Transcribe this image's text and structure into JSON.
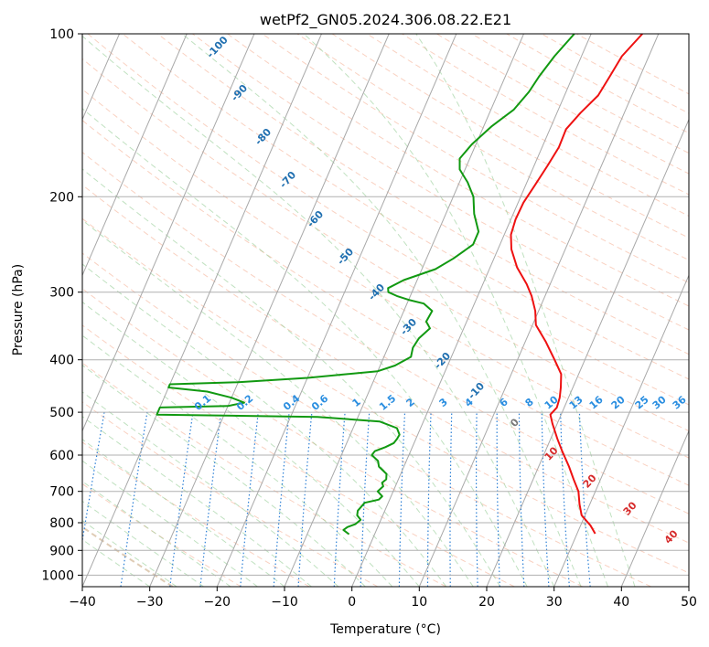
{
  "chart_data": {
    "type": "line",
    "title": "wetPf2_GN05.2024.306.08.22.E21",
    "xlabel": "Temperature (°C)",
    "ylabel": "Pressure (hPa)",
    "xlim": [
      -40,
      50
    ],
    "ylim": [
      1050,
      100
    ],
    "y_scale": "log",
    "x_ticks": [
      -40,
      -30,
      -20,
      -10,
      0,
      10,
      20,
      30,
      40,
      50
    ],
    "y_ticks": [
      100,
      200,
      300,
      400,
      500,
      600,
      700,
      800,
      900,
      1000
    ],
    "grid": true,
    "series": [
      {
        "name": "",
        "color": "#ee1111",
        "points": [
          [
            32.7,
            838
          ],
          [
            31.5,
            810
          ],
          [
            29.5,
            775
          ],
          [
            28.5,
            740
          ],
          [
            27.5,
            700
          ],
          [
            26.0,
            665
          ],
          [
            24.5,
            630
          ],
          [
            22.5,
            590
          ],
          [
            21.0,
            560
          ],
          [
            19.3,
            525
          ],
          [
            18.4,
            505
          ],
          [
            18.9,
            490
          ],
          [
            18.7,
            470
          ],
          [
            18.2,
            450
          ],
          [
            17.4,
            425
          ],
          [
            15.5,
            400
          ],
          [
            13.0,
            370
          ],
          [
            10.5,
            345
          ],
          [
            9.5,
            325
          ],
          [
            8.0,
            305
          ],
          [
            6.5,
            290
          ],
          [
            4.0,
            270
          ],
          [
            2.0,
            250
          ],
          [
            1.0,
            235
          ],
          [
            0.7,
            220
          ],
          [
            0.8,
            205
          ],
          [
            1.4,
            190
          ],
          [
            2.0,
            175
          ],
          [
            2.5,
            162
          ],
          [
            2.4,
            150
          ],
          [
            3.5,
            140
          ],
          [
            5.0,
            130
          ],
          [
            5.5,
            120
          ],
          [
            6.0,
            110
          ],
          [
            7.6,
            100
          ]
        ]
      },
      {
        "name": "",
        "color": "#119911",
        "points": [
          [
            -3.8,
            840
          ],
          [
            -4.9,
            825
          ],
          [
            -4.5,
            815
          ],
          [
            -3.5,
            805
          ],
          [
            -3.0,
            790
          ],
          [
            -3.8,
            775
          ],
          [
            -4.0,
            760
          ],
          [
            -3.5,
            735
          ],
          [
            -1.6,
            725
          ],
          [
            -1.3,
            715
          ],
          [
            -2.3,
            700
          ],
          [
            -1.8,
            685
          ],
          [
            -2.2,
            675
          ],
          [
            -1.8,
            665
          ],
          [
            -2.1,
            650
          ],
          [
            -3.7,
            630
          ],
          [
            -4.2,
            615
          ],
          [
            -5.5,
            600
          ],
          [
            -5.3,
            590
          ],
          [
            -4.0,
            580
          ],
          [
            -3.0,
            570
          ],
          [
            -2.8,
            560
          ],
          [
            -2.7,
            550
          ],
          [
            -3.5,
            535
          ],
          [
            -6.5,
            520
          ],
          [
            -16.0,
            510
          ],
          [
            -40.0,
            505
          ],
          [
            -40.0,
            490
          ],
          [
            -30.0,
            487
          ],
          [
            -27.8,
            480
          ],
          [
            -30.0,
            470
          ],
          [
            -34.0,
            458
          ],
          [
            -40.0,
            450
          ],
          [
            -40.0,
            444
          ],
          [
            -30.0,
            440
          ],
          [
            -20.0,
            432
          ],
          [
            -10.0,
            420
          ],
          [
            -7.8,
            410
          ],
          [
            -6.0,
            395
          ],
          [
            -6.3,
            380
          ],
          [
            -6.0,
            365
          ],
          [
            -5.0,
            350
          ],
          [
            -6.0,
            340
          ],
          [
            -5.8,
            325
          ],
          [
            -7.5,
            315
          ],
          [
            -10.0,
            310
          ],
          [
            -12.0,
            305
          ],
          [
            -13.5,
            300
          ],
          [
            -13.8,
            295
          ],
          [
            -12.0,
            285
          ],
          [
            -8.0,
            272
          ],
          [
            -6.0,
            260
          ],
          [
            -4.0,
            245
          ],
          [
            -4.0,
            232
          ],
          [
            -5.8,
            215
          ],
          [
            -7.0,
            200
          ],
          [
            -8.8,
            188
          ],
          [
            -10.8,
            178
          ],
          [
            -11.5,
            170
          ],
          [
            -10.6,
            160
          ],
          [
            -8.8,
            148
          ],
          [
            -6.6,
            138
          ],
          [
            -5.5,
            128
          ],
          [
            -5.0,
            120
          ],
          [
            -4.0,
            110
          ],
          [
            -2.5,
            100
          ]
        ]
      }
    ],
    "isotherm_labels": [
      "-100",
      "-90",
      "-80",
      "-70",
      "-60",
      "-50",
      "-40",
      "-30",
      "-20",
      "-10"
    ],
    "mixing_ratio_labels": [
      "0.1",
      "0.2",
      "0.4",
      "0.6",
      "1",
      "1.5",
      "2",
      "3",
      "4",
      "6",
      "8",
      "10",
      "13",
      "16",
      "20",
      "25",
      "30",
      "36"
    ],
    "moist_adiabat_labels": [
      "0",
      "10",
      "20",
      "30",
      "40"
    ]
  }
}
